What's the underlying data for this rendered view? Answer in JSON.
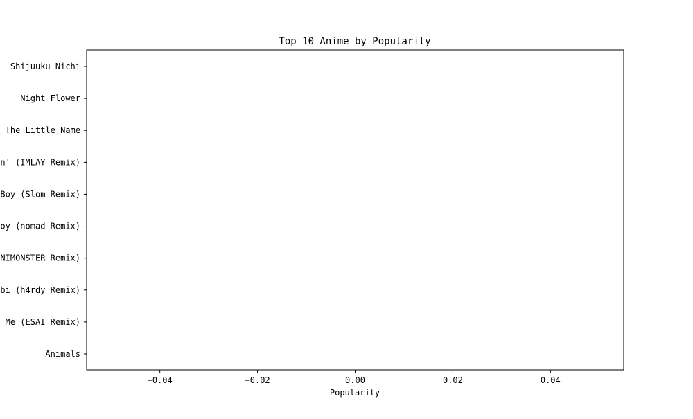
{
  "chart_data": {
    "type": "bar",
    "orientation": "horizontal",
    "title": "Top 10 Anime by Popularity",
    "xlabel": "Popularity",
    "ylabel": "",
    "categories": [
      "Shijuuku Nichi",
      "Night Flower",
      "The Little Name",
      "in' (IMLAY Remix)",
      "Boy (Slom Remix)",
      "Boy (nomad Remix)",
      "INIMONSTER Remix)",
      "mbi (h4rdy Remix)",
      "l Me (ESAI Remix)",
      "Animals"
    ],
    "values": [
      0,
      0,
      0,
      0,
      0,
      0,
      0,
      0,
      0,
      0
    ],
    "xlim": [
      -0.055,
      0.055
    ],
    "xticks": [
      -0.04,
      -0.02,
      0.0,
      0.02,
      0.04
    ],
    "xtick_labels": [
      "−0.04",
      "−0.02",
      "0.00",
      "0.02",
      "0.04"
    ],
    "grid": false,
    "legend": "none",
    "colors": {
      "axis": "#000000",
      "bar": "#1f77b4",
      "background": "#ffffff"
    }
  }
}
